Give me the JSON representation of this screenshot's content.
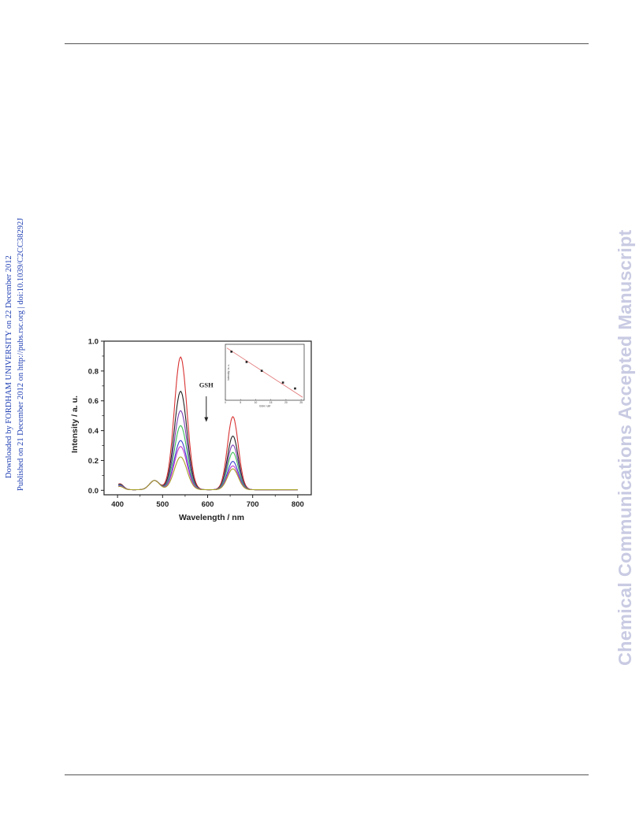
{
  "side_notice": {
    "line1": "Downloaded by FORDHAM UNIVERSITY on 22 December 2012",
    "line2": "Published on 21 December 2012 on http://pubs.rsc.org | doi:10.1039/C2CC38292J"
  },
  "watermark": "Chemical Communications Accepted Manuscript",
  "chart_data": [
    {
      "type": "line",
      "title": "",
      "xlabel": "Wavelength / nm",
      "ylabel": "Intensity / a. u.",
      "xlim": [
        370,
        830
      ],
      "ylim": [
        -0.03,
        1.0
      ],
      "xticks": [
        400,
        500,
        600,
        700,
        800
      ],
      "yticks": [
        0.0,
        0.2,
        0.4,
        0.6,
        0.8,
        1.0
      ],
      "ytick_labels": [
        "0.0",
        "0.2",
        "0.4",
        "0.6",
        "0.8",
        "1.0"
      ],
      "annotation": "GSH",
      "grid": false,
      "series": [
        {
          "color": "#d93232",
          "peak_540": 0.89,
          "peak_655": 0.49
        },
        {
          "color": "#222222",
          "peak_540": 0.66,
          "peak_655": 0.36
        },
        {
          "color": "#7a3fb5",
          "peak_540": 0.53,
          "peak_655": 0.3
        },
        {
          "color": "#3fbf5a",
          "peak_540": 0.43,
          "peak_655": 0.25
        },
        {
          "color": "#3a3fd0",
          "peak_540": 0.33,
          "peak_655": 0.19
        },
        {
          "color": "#c23ad0",
          "peak_540": 0.29,
          "peak_655": 0.16
        },
        {
          "color": "#a8a028",
          "peak_540": 0.22,
          "peak_655": 0.14
        }
      ]
    },
    {
      "type": "scatter",
      "title": "",
      "xlabel": "GSH / uM",
      "ylabel": "Intensity / a. u.",
      "xticks": [
        0,
        5,
        10,
        15,
        20,
        25
      ],
      "x": [
        2,
        7,
        12,
        19,
        23
      ],
      "y": [
        0.95,
        0.88,
        0.82,
        0.74,
        0.7
      ],
      "fit_line": true
    }
  ]
}
